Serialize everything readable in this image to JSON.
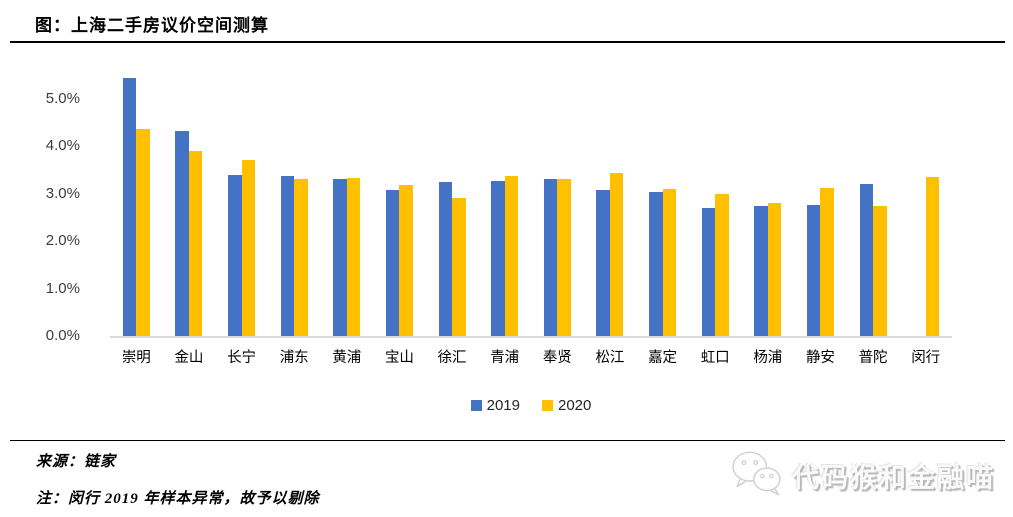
{
  "title": "图：上海二手房议价空间测算",
  "source_note": "来源：链家",
  "footnote": "注：闵行 2019 年样本异常，故予以剔除",
  "watermark": {
    "label": "代码猴和金融喵",
    "icon": "wechat-icon"
  },
  "colors": {
    "series_2019": "#4472C4",
    "series_2020": "#FFC000",
    "baseline": "#D9D9D9",
    "rule": "#000000"
  },
  "legend": [
    {
      "label": "2019",
      "color": "#4472C4"
    },
    {
      "label": "2020",
      "color": "#FFC000"
    }
  ],
  "chart_data": {
    "type": "bar",
    "title": "图：上海二手房议价空间测算",
    "categories": [
      "崇明",
      "金山",
      "长宁",
      "浦东",
      "黄浦",
      "宝山",
      "徐汇",
      "青浦",
      "奉贤",
      "松江",
      "嘉定",
      "虹口",
      "杨浦",
      "静安",
      "普陀",
      "闵行"
    ],
    "series": [
      {
        "name": "2019",
        "color": "#4472C4",
        "values": [
          5.44,
          4.33,
          3.4,
          3.38,
          3.31,
          3.07,
          3.25,
          3.27,
          3.32,
          3.08,
          3.04,
          2.69,
          2.75,
          2.76,
          3.2,
          null
        ]
      },
      {
        "name": "2020",
        "color": "#FFC000",
        "values": [
          4.37,
          3.89,
          3.72,
          3.32,
          3.34,
          3.19,
          2.9,
          3.38,
          3.31,
          3.43,
          3.1,
          2.99,
          2.81,
          3.11,
          2.73,
          3.35
        ]
      }
    ],
    "xlabel": "",
    "ylabel": "",
    "unit": "%",
    "yticks": [
      "0.0%",
      "1.0%",
      "2.0%",
      "3.0%",
      "4.0%",
      "5.0%"
    ],
    "ylim": [
      0,
      5.5
    ],
    "grid": false,
    "legend_position": "bottom-center"
  }
}
